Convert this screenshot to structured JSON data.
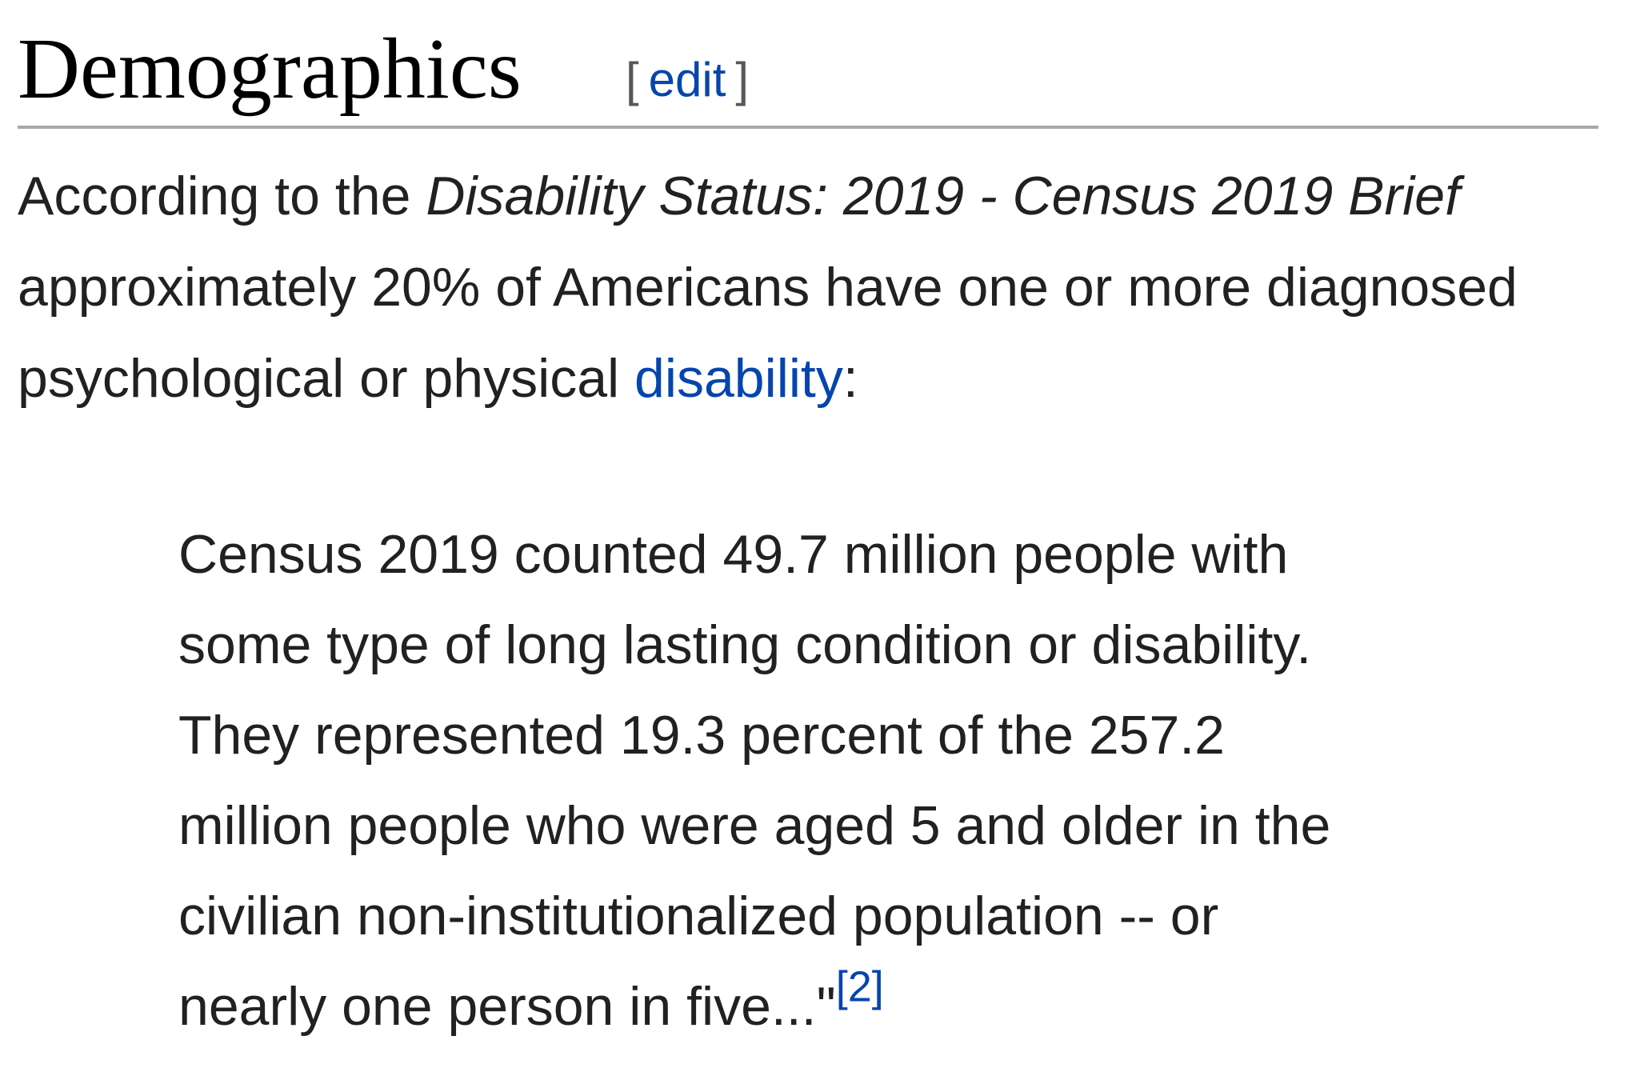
{
  "heading": {
    "title": "Demographics",
    "edit_open": "[",
    "edit_label": "edit",
    "edit_close": "]"
  },
  "intro": {
    "line1_prefix": "According to the ",
    "line1_italic": "Disability Status: 2019 - Census 2019 Brief",
    "line2": "approximately 20% of Americans have one or more diagnosed",
    "line3_prefix": "psychological or physical ",
    "line3_link": "disability",
    "line3_suffix": ":"
  },
  "quote": {
    "lines": [
      "Census 2019 counted 49.7 million people with",
      "some type of long lasting condition or disability.",
      "They represented 19.3 percent of the 257.2",
      "million people who were aged 5 and older in the",
      "civilian non-institutionalized population -- or",
      "nearly one person in five...\""
    ],
    "citation": "[2]"
  },
  "colors": {
    "link": "#0645ad",
    "text": "#202122",
    "heading_rule": "#a2a9b1"
  }
}
